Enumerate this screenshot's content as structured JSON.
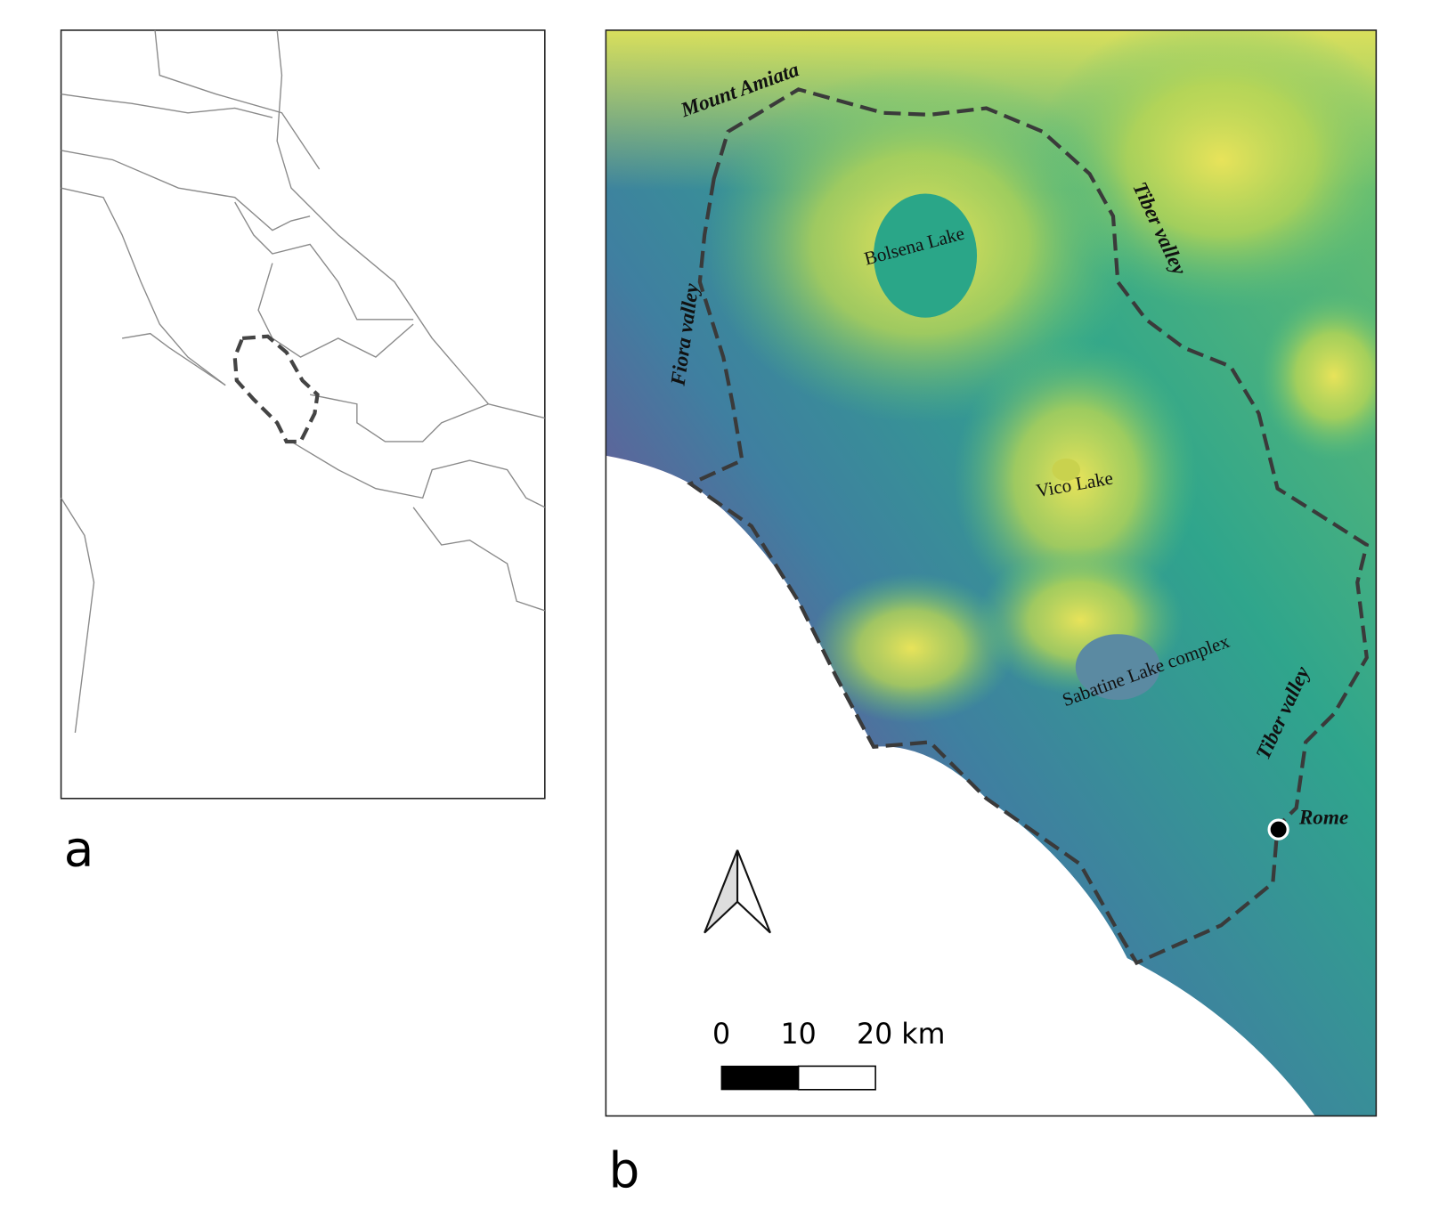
{
  "panel_a": {
    "label": "a"
  },
  "panel_b": {
    "label": "b",
    "labels": {
      "mount_amiata": "Mount Amiata",
      "tiber_valley_north": "Tiber valley",
      "fiora_valley": "Fiora valley",
      "bolsena_lake": "Bolsena Lake",
      "vico_lake": "Vico Lake",
      "sabatine_lake": "Sabatine Lake complex",
      "tiber_valley_south": "Tiber valley",
      "rome": "Rome"
    },
    "scale_bar": {
      "labels": [
        "0",
        "10",
        "20 km"
      ]
    }
  }
}
